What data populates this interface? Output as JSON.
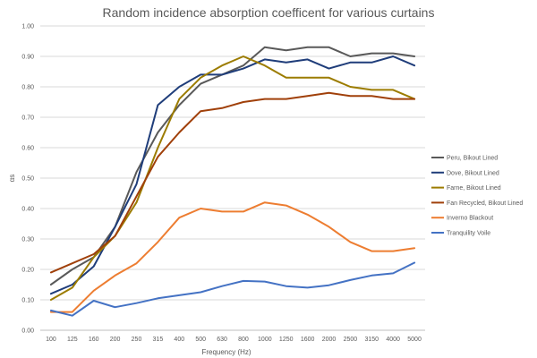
{
  "chart_data": {
    "type": "line",
    "title": "Random incidence absorption coefficent for various curtains",
    "xlabel": "Frequency (Hz)",
    "ylabel": "αs",
    "ylim": [
      0,
      1.0
    ],
    "yticks": [
      "0.00",
      "0.10",
      "0.20",
      "0.30",
      "0.40",
      "0.50",
      "0.60",
      "0.70",
      "0.80",
      "0.90",
      "1.00"
    ],
    "categories": [
      "100",
      "125",
      "160",
      "200",
      "250",
      "315",
      "400",
      "500",
      "630",
      "800",
      "1000",
      "1250",
      "1600",
      "2000",
      "2500",
      "3150",
      "4000",
      "5000"
    ],
    "grid": true,
    "legend_position": "right",
    "series": [
      {
        "name": "Peru, Bikout Lined",
        "color": "#595959",
        "values": [
          0.15,
          0.2,
          0.24,
          0.34,
          0.52,
          0.65,
          0.74,
          0.81,
          0.84,
          0.87,
          0.93,
          0.92,
          0.93,
          0.93,
          0.9,
          0.91,
          0.91,
          0.9
        ]
      },
      {
        "name": "Dove, Bikout Lined",
        "color": "#1f3d7a",
        "values": [
          0.12,
          0.15,
          0.21,
          0.34,
          0.48,
          0.74,
          0.8,
          0.84,
          0.84,
          0.86,
          0.89,
          0.88,
          0.89,
          0.86,
          0.88,
          0.88,
          0.9,
          0.87
        ]
      },
      {
        "name": "Farne, Bikout Lined",
        "color": "#9c7c00",
        "values": [
          0.1,
          0.14,
          0.24,
          0.31,
          0.42,
          0.6,
          0.76,
          0.83,
          0.87,
          0.9,
          0.87,
          0.83,
          0.83,
          0.83,
          0.8,
          0.79,
          0.79,
          0.76
        ]
      },
      {
        "name": "Fan Recycled, Bikout Lined",
        "color": "#a0400a",
        "values": [
          0.19,
          0.22,
          0.25,
          0.31,
          0.44,
          0.57,
          0.65,
          0.72,
          0.73,
          0.75,
          0.76,
          0.76,
          0.77,
          0.78,
          0.77,
          0.77,
          0.76,
          0.76
        ]
      },
      {
        "name": "Inverno Blackout",
        "color": "#ed7d31",
        "values": [
          0.06,
          0.06,
          0.13,
          0.18,
          0.22,
          0.29,
          0.37,
          0.4,
          0.39,
          0.39,
          0.42,
          0.41,
          0.38,
          0.34,
          0.29,
          0.26,
          0.26,
          0.27
        ]
      },
      {
        "name": "Tranquility Voile",
        "color": "#4472c4",
        "values": [
          0.065,
          0.048,
          0.097,
          0.076,
          0.089,
          0.105,
          0.115,
          0.125,
          0.145,
          0.162,
          0.16,
          0.145,
          0.14,
          0.148,
          0.165,
          0.18,
          0.187,
          0.222
        ]
      }
    ]
  }
}
